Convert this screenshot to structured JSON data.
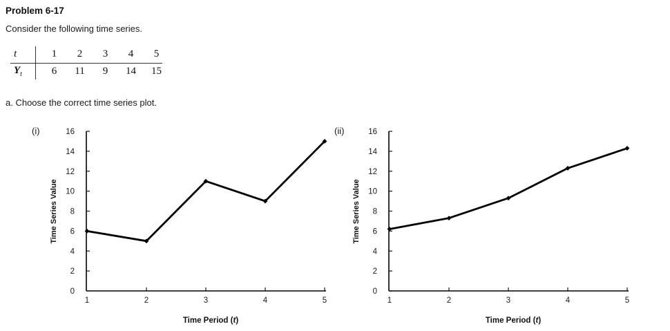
{
  "page": {
    "background": "#ffffff",
    "text_color": "#1a1a1a",
    "accent": "#000000"
  },
  "header": {
    "title": "Problem 6-17",
    "intro": "Consider the following time series."
  },
  "table": {
    "row1_label": "t",
    "row2_label_main": "Y",
    "row2_label_sub": "t",
    "t_values": [
      "1",
      "2",
      "3",
      "4",
      "5"
    ],
    "y_values": [
      "6",
      "11",
      "9",
      "14",
      "15"
    ]
  },
  "question": {
    "label": "a. Choose the correct time series plot."
  },
  "chart_data": [
    {
      "type": "line",
      "label": "(i)",
      "x": [
        1,
        2,
        3,
        4,
        5
      ],
      "values": [
        6,
        5,
        11,
        9,
        15
      ],
      "xlabel": "Time Period (t)",
      "xlabel_prefix": "Time Period (",
      "xlabel_t": "t",
      "xlabel_suffix": ")",
      "ylabel": "Time Series Value",
      "ylim": [
        0,
        16
      ],
      "ytick_step": 2,
      "xticks": [
        1,
        2,
        3,
        4,
        5
      ],
      "yticks": [
        0,
        2,
        4,
        6,
        8,
        10,
        12,
        14,
        16
      ],
      "grid": false,
      "legend": "none",
      "marker": "diamond",
      "line_color": "#000000"
    },
    {
      "type": "line",
      "label": "(ii)",
      "x": [
        1,
        2,
        3,
        4,
        5
      ],
      "values": [
        6.2,
        7.3,
        9.3,
        12.3,
        14.3
      ],
      "xlabel": "Time Period (t)",
      "xlabel_prefix": "Time Period (",
      "xlabel_t": "t",
      "xlabel_suffix": ")",
      "ylabel": "Time Series Value",
      "ylim": [
        0,
        16
      ],
      "ytick_step": 2,
      "xticks": [
        1,
        2,
        3,
        4,
        5
      ],
      "yticks": [
        0,
        2,
        4,
        6,
        8,
        10,
        12,
        14,
        16
      ],
      "grid": false,
      "legend": "none",
      "marker": "diamond",
      "line_color": "#000000"
    }
  ]
}
